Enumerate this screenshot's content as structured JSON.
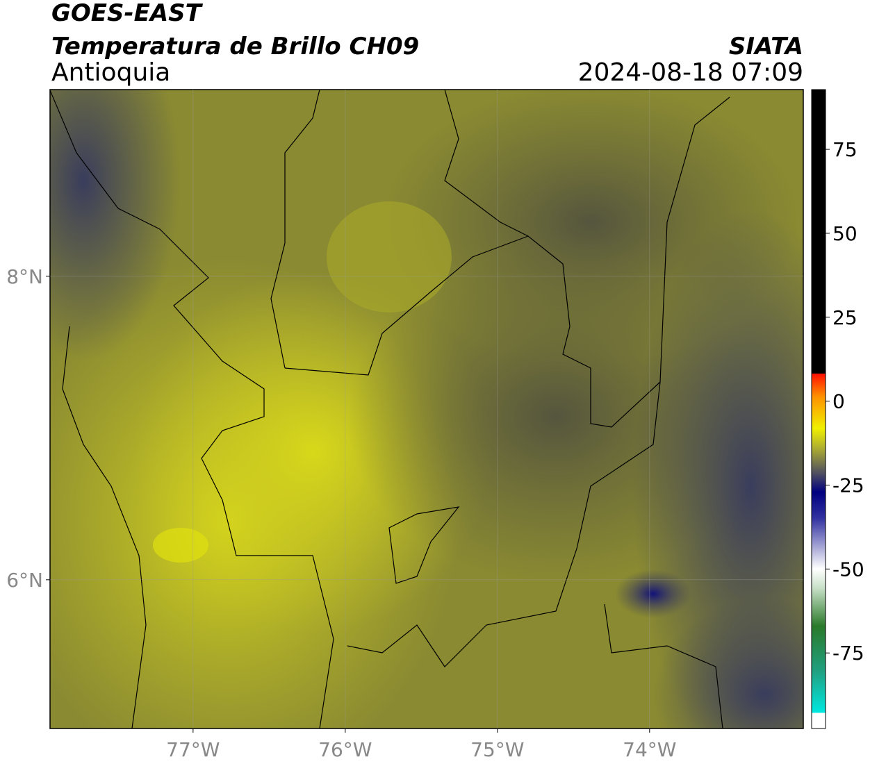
{
  "header": {
    "title": "GOES-EAST",
    "subtitle": "Temperatura de Brillo CH09",
    "region": "Antioquia",
    "source": "SIATA",
    "datetime": "2024-08-18 07:09"
  },
  "map": {
    "xlim": [
      -77.94,
      -72.99
    ],
    "ylim": [
      5.02,
      9.23
    ],
    "xticks": [
      {
        "value": -77,
        "label": "77°W"
      },
      {
        "value": -76,
        "label": "76°W"
      },
      {
        "value": -75,
        "label": "75°W"
      },
      {
        "value": -74,
        "label": "74°W"
      }
    ],
    "yticks": [
      {
        "value": 8,
        "label": "8°N"
      },
      {
        "value": 6,
        "label": "6°N"
      }
    ]
  },
  "colorbar": {
    "lim": [
      -97.5,
      92.8
    ],
    "ticks": [
      75,
      50,
      25,
      0,
      -25,
      -50,
      -75
    ]
  }
}
